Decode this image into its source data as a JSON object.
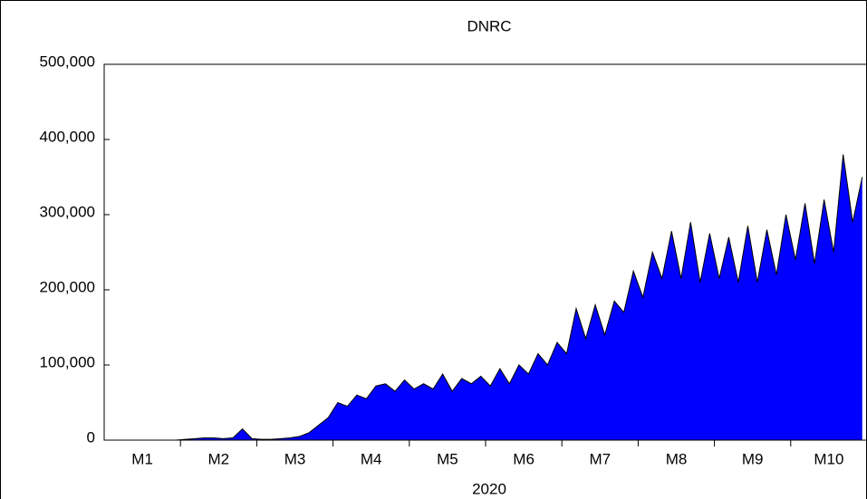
{
  "chart_data": {
    "type": "area",
    "title": "DNRC",
    "xlabel": "2020",
    "categories": [
      null,
      null,
      null,
      null,
      "M1",
      null,
      null,
      null,
      null,
      null,
      null,
      null,
      "M2",
      null,
      null,
      null,
      null,
      null,
      null,
      null,
      "M3",
      null,
      null,
      null,
      null,
      null,
      null,
      null,
      "M4",
      null,
      null,
      null,
      null,
      null,
      null,
      null,
      "M5",
      null,
      null,
      null,
      null,
      null,
      null,
      null,
      "M6",
      null,
      null,
      null,
      null,
      null,
      null,
      null,
      "M7",
      null,
      null,
      null,
      null,
      null,
      null,
      null,
      "M8",
      null,
      null,
      null,
      null,
      null,
      null,
      null,
      "M9",
      null,
      null,
      null,
      null,
      null,
      null,
      null,
      "M10",
      null,
      null,
      null
    ],
    "series": [
      {
        "name": "DNRC",
        "color": "#0000ff",
        "values": [
          null,
          null,
          null,
          null,
          null,
          null,
          null,
          0,
          1000,
          2000,
          3000,
          3000,
          2000,
          3000,
          15000,
          2000,
          1000,
          1000,
          2000,
          3000,
          5000,
          10000,
          20000,
          30000,
          50000,
          45000,
          60000,
          55000,
          72000,
          75000,
          65000,
          80000,
          68000,
          75000,
          68000,
          88000,
          65000,
          82000,
          75000,
          85000,
          72000,
          95000,
          75000,
          100000,
          88000,
          115000,
          100000,
          130000,
          115000,
          175000,
          135000,
          180000,
          140000,
          185000,
          170000,
          225000,
          190000,
          250000,
          215000,
          278000,
          215000,
          290000,
          210000,
          275000,
          215000,
          270000,
          210000,
          285000,
          210000,
          280000,
          220000,
          300000,
          240000,
          315000,
          235000,
          320000,
          250000,
          380000,
          290000,
          350000
        ]
      }
    ],
    "ylim": [
      0,
      500000
    ],
    "yticks": [
      0,
      {
        "value": 100000,
        "label": "100,000"
      },
      {
        "value": 200000,
        "label": "200,000"
      },
      {
        "value": 300000,
        "label": "300,000"
      },
      {
        "value": 400000,
        "label": "400,000"
      },
      {
        "value": 500000,
        "label": "500,000"
      }
    ]
  }
}
